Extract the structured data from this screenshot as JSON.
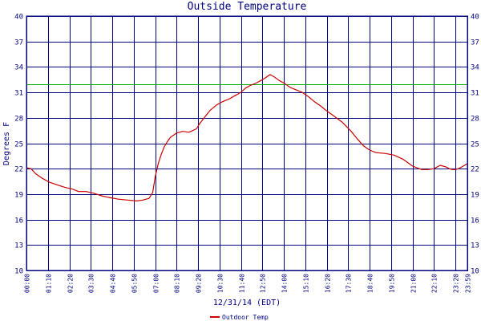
{
  "chart_data": {
    "type": "line",
    "title": "Outside Temperature",
    "xlabel": "12/31/14 (EDT)",
    "ylabel": "Degrees F",
    "ylim": [
      10,
      40
    ],
    "yticks": [
      "10",
      "13",
      "16",
      "19",
      "22",
      "25",
      "28",
      "31",
      "34",
      "37",
      "40"
    ],
    "xlim": [
      0,
      1439
    ],
    "xticks": [
      "00:00",
      "01:10",
      "02:20",
      "03:30",
      "04:40",
      "05:50",
      "07:00",
      "08:10",
      "09:20",
      "10:30",
      "11:40",
      "12:50",
      "14:00",
      "15:10",
      "16:20",
      "17:30",
      "18:40",
      "19:50",
      "21:00",
      "22:10",
      "23:20",
      "23:59"
    ],
    "grid": true,
    "reference_line": {
      "value": 32,
      "color": "#00b000"
    },
    "legend": {
      "placement": "bottom-center"
    },
    "series": [
      {
        "name": "Outdoor Temp",
        "color": "#cc0000",
        "x": [
          0,
          15,
          30,
          50,
          75,
          100,
          125,
          150,
          170,
          195,
          220,
          245,
          270,
          300,
          330,
          360,
          380,
          400,
          412,
          420,
          430,
          440,
          450,
          460,
          470,
          490,
          510,
          530,
          555,
          565,
          580,
          600,
          620,
          640,
          660,
          680,
          700,
          715,
          730,
          750,
          775,
          795,
          810,
          825,
          840,
          860,
          880,
          900,
          920,
          940,
          960,
          980,
          1000,
          1030,
          1060,
          1080,
          1100,
          1120,
          1140,
          1170,
          1200,
          1230,
          1260,
          1290,
          1310,
          1330,
          1350,
          1370,
          1380,
          1390,
          1400,
          1410,
          1420,
          1430,
          1439
        ],
        "values": [
          22.1,
          22.0,
          21.4,
          20.9,
          20.4,
          20.1,
          19.8,
          19.6,
          19.3,
          19.3,
          19.1,
          18.8,
          18.6,
          18.4,
          18.3,
          18.2,
          18.3,
          18.5,
          19.2,
          21.0,
          22.6,
          23.7,
          24.6,
          25.2,
          25.7,
          26.2,
          26.4,
          26.3,
          26.7,
          27.3,
          28.0,
          28.9,
          29.5,
          29.9,
          30.2,
          30.6,
          31.0,
          31.5,
          31.8,
          32.1,
          32.6,
          33.1,
          32.8,
          32.4,
          32.1,
          31.6,
          31.3,
          31.0,
          30.5,
          29.9,
          29.4,
          28.8,
          28.3,
          27.5,
          26.4,
          25.5,
          24.7,
          24.2,
          23.9,
          23.8,
          23.6,
          23.1,
          22.3,
          21.9,
          21.9,
          22.0,
          22.4,
          22.2,
          22.0,
          21.9,
          21.9,
          22.0,
          22.2,
          22.4,
          22.6
        ]
      }
    ]
  }
}
